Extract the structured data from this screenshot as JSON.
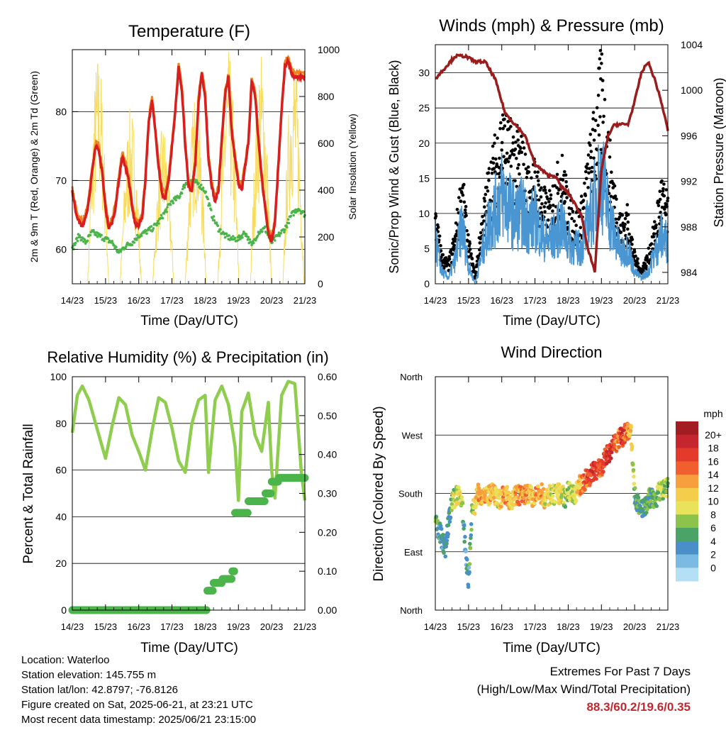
{
  "colors": {
    "temp2m": "#d81e1e",
    "temp9m": "#f0821e",
    "dewpoint": "#4bb44b",
    "solar": "#f7dc5f",
    "wind": "#000000",
    "sonic": "#4a96d2",
    "pressure": "#9b1c1c",
    "rh": "#8fcd4f",
    "precip": "#4bb44b",
    "extremes": "#c4262e"
  },
  "time_axis": {
    "ticks": [
      "14/23",
      "15/23",
      "16/23",
      "17/23",
      "18/23",
      "19/23",
      "20/23",
      "21/23"
    ],
    "label": "Time (Day/UTC)"
  },
  "chart_data": [
    {
      "type": "line",
      "title": "Temperature (F)",
      "xlabel": "Time (Day/UTC)",
      "ylabel": "2m & 9m T (Red, Orange) & 2m Td (Green)",
      "y2label": "Solar Insolation (Yellow)",
      "ylim": [
        55,
        89
      ],
      "y2lim": [
        0,
        1000
      ],
      "yticks": [
        "60",
        "70",
        "80"
      ],
      "y2ticks": [
        "0",
        "200",
        "400",
        "600",
        "800",
        "1000"
      ],
      "grid": true,
      "series": [
        {
          "kind": "temp2m",
          "x": [
            0,
            0.1,
            0.2,
            0.3,
            0.4,
            0.5,
            0.6,
            0.7,
            0.8,
            0.9,
            1,
            1.1,
            1.2,
            1.3,
            1.4,
            1.5,
            1.6,
            1.7,
            1.8,
            1.9,
            2,
            2.1,
            2.2,
            2.3,
            2.4,
            2.5,
            2.6,
            2.7,
            2.8,
            2.9,
            3,
            3.1,
            3.2,
            3.3,
            3.4,
            3.5,
            3.6,
            3.7,
            3.8,
            3.9,
            4,
            4.1,
            4.2,
            4.3,
            4.4,
            4.5,
            4.6,
            4.7,
            4.8,
            4.9,
            5,
            5.1,
            5.2,
            5.3,
            5.4,
            5.5,
            5.6,
            5.7,
            5.8,
            5.9,
            6,
            6.1,
            6.2,
            6.3,
            6.4,
            6.5,
            6.6,
            6.7,
            6.8,
            6.9,
            7
          ],
          "y": [
            68.5,
            65.5,
            64,
            63.5,
            64.5,
            67,
            71.5,
            75,
            74.5,
            71,
            66,
            63,
            64,
            66,
            70,
            73.5,
            72,
            70,
            66,
            63.5,
            63.5,
            64.5,
            70,
            78.5,
            81.5,
            77,
            72,
            68,
            67.5,
            70,
            75,
            80,
            86.5,
            83,
            75,
            69,
            68.5,
            72.5,
            81.5,
            85.5,
            82,
            73,
            69,
            67,
            68.5,
            76,
            82.5,
            85,
            77,
            73,
            69.5,
            68.5,
            72,
            75.5,
            84.5,
            82.5,
            76,
            70.5,
            66,
            62.5,
            61,
            64,
            72,
            80,
            86.5,
            87.5,
            85.5,
            85,
            85,
            85,
            85
          ]
        },
        {
          "kind": "dewpoint",
          "x": [
            0,
            0.2,
            0.4,
            0.6,
            0.8,
            1,
            1.2,
            1.4,
            1.6,
            1.8,
            2,
            2.2,
            2.4,
            2.6,
            2.8,
            3,
            3.2,
            3.4,
            3.6,
            3.8,
            4,
            4.2,
            4.4,
            4.6,
            4.8,
            5,
            5.2,
            5.4,
            5.6,
            5.8,
            6,
            6.2,
            6.4,
            6.6,
            6.8,
            7
          ],
          "y": [
            60,
            62,
            61,
            62.5,
            62,
            61.5,
            61,
            59.5,
            60.5,
            61,
            62,
            62.5,
            63,
            64,
            65.5,
            67,
            67.5,
            69.5,
            70,
            69.5,
            68.5,
            65,
            63,
            62,
            61.5,
            61.5,
            62.5,
            60.5,
            62.5,
            63,
            61,
            62,
            63,
            65,
            66,
            65
          ]
        }
      ],
      "solar_peaks": [
        0.78,
        1.76,
        2.74,
        3.72,
        4.7,
        5.68,
        6.66
      ],
      "solar_heights": [
        1000,
        760,
        690,
        850,
        1000,
        1000,
        1000
      ]
    },
    {
      "type": "line",
      "title": "Winds (mph) & Pressure (mb)",
      "xlabel": "Time (Day/UTC)",
      "ylabel": "Sonic/Prop Wind & Gust (Blue, Black)",
      "y2label": "Station Pressure (Maroon)",
      "ylim": [
        0,
        34
      ],
      "y2lim": [
        983,
        1004
      ],
      "yticks": [
        "0",
        "5",
        "10",
        "15",
        "20",
        "25",
        "30"
      ],
      "y2ticks": [
        "984",
        "988",
        "992",
        "996",
        "1000",
        "1004"
      ],
      "grid": true,
      "wind_x": [
        0,
        0.2,
        0.4,
        0.6,
        0.8,
        1,
        1.2,
        1.4,
        1.6,
        1.8,
        2,
        2.2,
        2.4,
        2.6,
        2.8,
        3,
        3.2,
        3.4,
        3.6,
        3.8,
        4,
        4.2,
        4.4,
        4.6,
        4.8,
        5,
        5.2,
        5.4,
        5.6,
        5.8,
        6,
        6.2,
        6.4,
        6.6,
        6.8,
        7
      ],
      "sonic": [
        7,
        2,
        1,
        4,
        10,
        3,
        0,
        5,
        10,
        12,
        15,
        13,
        11,
        12,
        10,
        11,
        8,
        7,
        8,
        10,
        7,
        6,
        6,
        10,
        14,
        18,
        12,
        8,
        5,
        6,
        2,
        1,
        2,
        5,
        8,
        7
      ],
      "gust": [
        10,
        4,
        3,
        7,
        15,
        6,
        1,
        9,
        15,
        19,
        23,
        21,
        20,
        19,
        15,
        16,
        13,
        11,
        14,
        17,
        12,
        9,
        11,
        17,
        23,
        30,
        20,
        13,
        9,
        10,
        4,
        2,
        4,
        8,
        14,
        11
      ],
      "pressure_x": [
        0,
        0.3,
        0.6,
        0.9,
        1.2,
        1.5,
        1.8,
        2.1,
        2.4,
        2.7,
        3,
        3.2,
        3.4,
        3.6,
        3.8,
        4,
        4.2,
        4.4,
        4.6,
        4.8,
        5,
        5.2,
        5.4,
        5.6,
        5.8,
        6,
        6.2,
        6.4,
        6.6,
        6.8,
        7
      ],
      "pressure": [
        1001,
        1002,
        1003,
        1003,
        1002.5,
        1002.5,
        1001,
        998,
        997,
        996,
        993.5,
        993,
        992.5,
        992.5,
        991.5,
        991,
        990,
        989,
        986,
        984,
        993,
        996,
        997,
        997,
        997,
        999,
        1001.5,
        1002.5,
        1001,
        999,
        996.5
      ]
    },
    {
      "type": "line",
      "title": "Relative Humidity (%) & Precipitation (in)",
      "xlabel": "Time (Day/UTC)",
      "ylabel": "Percent & Total Rainfall",
      "ylim": [
        0,
        100
      ],
      "y2lim": [
        0,
        0.6
      ],
      "yticks": [
        "0",
        "20",
        "40",
        "60",
        "80",
        "100"
      ],
      "y2ticks": [
        "0.00",
        "0.10",
        "0.20",
        "0.30",
        "0.40",
        "0.50",
        "0.60"
      ],
      "grid": true,
      "series": [
        {
          "kind": "rh",
          "x": [
            0,
            0.15,
            0.3,
            0.5,
            0.7,
            0.9,
            1,
            1.2,
            1.4,
            1.6,
            1.8,
            2,
            2.2,
            2.4,
            2.6,
            2.8,
            3,
            3.2,
            3.4,
            3.6,
            3.8,
            4,
            4.1,
            4.3,
            4.5,
            4.7,
            4.9,
            5,
            5.1,
            5.3,
            5.5,
            5.7,
            5.9,
            6,
            6.1,
            6.3,
            6.5,
            6.7,
            6.9,
            7
          ],
          "y": [
            76,
            92,
            96,
            90,
            80,
            70,
            65,
            79,
            91,
            88,
            75,
            68,
            60,
            77,
            91,
            89,
            78,
            64,
            59,
            80,
            90,
            92,
            59,
            90,
            96,
            88,
            70,
            47,
            85,
            93,
            75,
            68,
            89,
            60,
            48,
            92,
            98,
            97,
            58,
            47
          ]
        },
        {
          "kind": "precip",
          "x": [
            0,
            3.97,
            4.05,
            4.25,
            4.5,
            4.65,
            4.8,
            4.9,
            5.3,
            5.7,
            5.8,
            6.0,
            6.2,
            7
          ],
          "y": [
            0,
            0,
            0.05,
            0.07,
            0.08,
            0.08,
            0.1,
            0.25,
            0.28,
            0.28,
            0.3,
            0.33,
            0.34,
            0.34
          ]
        }
      ]
    },
    {
      "type": "scatter",
      "title": "Wind Direction",
      "xlabel": "Time (Day/UTC)",
      "ylabel": "Direction (Colored By Speed)",
      "yticks": [
        "North",
        "East",
        "South",
        "West",
        "North"
      ],
      "ylim": [
        0,
        360
      ],
      "x": [
        0,
        0.1,
        0.2,
        0.3,
        0.4,
        0.5,
        0.6,
        0.7,
        0.8,
        0.9,
        1,
        1.1,
        1.2,
        1.3,
        1.4,
        1.5,
        1.6,
        1.7,
        1.8,
        1.9,
        2,
        2.1,
        2.2,
        2.3,
        2.4,
        2.5,
        2.6,
        2.7,
        2.8,
        2.9,
        3,
        3.1,
        3.2,
        3.3,
        3.4,
        3.5,
        3.6,
        3.7,
        3.8,
        3.9,
        4,
        4.1,
        4.2,
        4.3,
        4.4,
        4.5,
        4.6,
        4.7,
        4.8,
        4.9,
        5,
        5.1,
        5.2,
        5.3,
        5.4,
        5.5,
        5.6,
        5.7,
        5.8,
        5.9,
        6,
        6.1,
        6.2,
        6.3,
        6.4,
        6.5,
        6.6,
        6.7,
        6.8,
        6.9,
        7
      ],
      "dir": [
        135,
        125,
        110,
        95,
        135,
        165,
        175,
        180,
        170,
        95,
        45,
        150,
        165,
        180,
        178,
        175,
        175,
        180,
        175,
        170,
        175,
        180,
        172,
        170,
        175,
        178,
        176,
        178,
        180,
        175,
        172,
        178,
        180,
        170,
        175,
        180,
        176,
        180,
        178,
        172,
        185,
        180,
        175,
        190,
        195,
        200,
        205,
        210,
        215,
        218,
        220,
        235,
        240,
        250,
        255,
        262,
        266,
        272,
        278,
        270,
        175,
        165,
        160,
        155,
        170,
        175,
        165,
        180,
        185,
        185,
        190
      ],
      "speed": [
        7,
        3,
        2,
        2,
        3,
        5,
        8,
        9,
        7,
        1,
        2,
        6,
        9,
        11,
        12,
        11,
        10,
        11,
        10,
        9,
        11,
        12,
        11,
        10,
        12,
        13,
        12,
        12,
        11,
        10,
        11,
        12,
        11,
        9,
        10,
        8,
        8,
        9,
        8,
        7,
        6,
        7,
        8,
        10,
        12,
        14,
        15,
        16,
        17,
        15,
        14,
        16,
        17,
        18,
        14,
        12,
        16,
        15,
        13,
        10,
        5,
        4,
        3,
        4,
        5,
        4,
        5,
        6,
        7,
        6,
        5
      ],
      "legend_title": "mph",
      "legend_labels": [
        "20+",
        "18",
        "16",
        "14",
        "12",
        "10",
        "8",
        "6",
        "4",
        "2",
        "0"
      ],
      "legend_colors": [
        "#a31c21",
        "#c5262d",
        "#e33a2c",
        "#f15f2e",
        "#f79e3d",
        "#f4cd4d",
        "#e8e35a",
        "#8cc34a",
        "#4ba365",
        "#4a8fc7",
        "#7bbae2",
        "#b5dff4"
      ]
    }
  ],
  "info": {
    "location": "Location: Waterloo",
    "elevation": "Station elevation: 145.755 m",
    "latlon": "Station lat/lon: 42.8797; -76.8126",
    "created": "Figure created on Sat, 2025-06-21, at 23:21 UTC",
    "recent": "Most recent data timestamp: 2025/06/21 23:15:00"
  },
  "extremes": {
    "title": "Extremes For Past 7 Days",
    "subtitle": "(High/Low/Max Wind/Total Precipitation)",
    "values": "88.3/60.2/19.6/0.35"
  }
}
